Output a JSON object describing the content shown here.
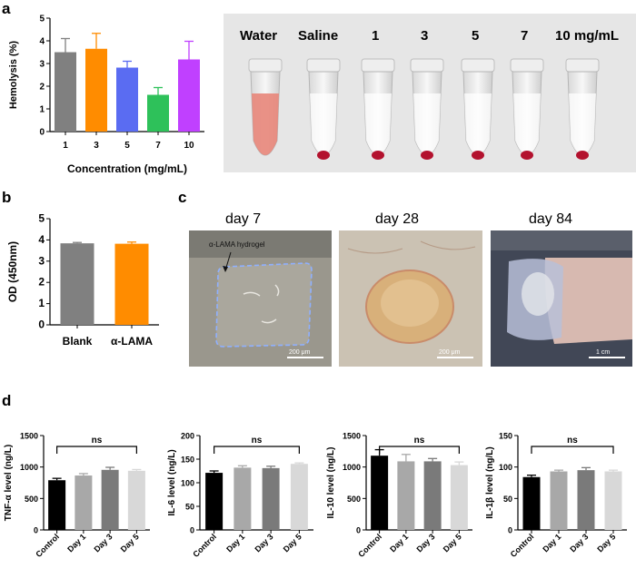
{
  "panel_labels": {
    "a": "a",
    "b": "b",
    "c": "c",
    "d": "d"
  },
  "tube_photo": {
    "labels": [
      "Water",
      "Saline",
      "1",
      "3",
      "5",
      "7",
      "10 mg/mL"
    ]
  },
  "implant_photos": {
    "day_labels": [
      "day 7",
      "day 28",
      "day 84"
    ],
    "hydrogel_annotation": "α-LAMA hydrogel",
    "scale_labels": [
      "200 μm",
      "200 μm",
      "1 cm"
    ]
  },
  "chart_data": [
    {
      "id": "hemolysis",
      "type": "bar",
      "categories": [
        "1",
        "3",
        "5",
        "7",
        "10"
      ],
      "values": [
        3.5,
        3.65,
        2.82,
        1.62,
        3.18
      ],
      "errors": [
        0.6,
        0.68,
        0.28,
        0.32,
        0.8
      ],
      "colors": [
        "#808080",
        "#ff8c00",
        "#5a6cf2",
        "#2ec15a",
        "#c040ff"
      ],
      "xlabel": "Concentration (mg/mL)",
      "ylabel": "Hemolysis (%)",
      "ylim": [
        0,
        5
      ],
      "yticks": [
        0,
        1,
        2,
        3,
        4,
        5
      ]
    },
    {
      "id": "od",
      "type": "bar",
      "categories": [
        "Blank",
        "α-LAMA"
      ],
      "values": [
        3.84,
        3.82
      ],
      "errors": [
        0.04,
        0.08
      ],
      "colors": [
        "#808080",
        "#ff8c00"
      ],
      "xlabel": "",
      "ylabel": "OD (450nm)",
      "ylim": [
        0,
        5
      ],
      "yticks": [
        0,
        1,
        2,
        3,
        4,
        5
      ]
    },
    {
      "id": "tnf",
      "type": "bar",
      "categories": [
        "Control",
        "Day 1",
        "Day 3",
        "Day 5"
      ],
      "values": [
        790,
        865,
        955,
        940
      ],
      "errors": [
        30,
        30,
        40,
        20
      ],
      "colors": [
        "#000000",
        "#a8a8a8",
        "#7a7a7a",
        "#d8d8d8"
      ],
      "ylabel": "TNF-α level (ng/L)",
      "ylim": [
        0,
        1500
      ],
      "yticks": [
        0,
        500,
        1000,
        1500
      ],
      "annotation": "ns"
    },
    {
      "id": "il6",
      "type": "bar",
      "categories": [
        "Control",
        "Day 1",
        "Day 3",
        "Day 5"
      ],
      "values": [
        121,
        132,
        131,
        140
      ],
      "errors": [
        4,
        4,
        4,
        2
      ],
      "colors": [
        "#000000",
        "#a8a8a8",
        "#7a7a7a",
        "#d8d8d8"
      ],
      "ylabel": "IL-6 level (ng/L)",
      "ylim": [
        0,
        200
      ],
      "yticks": [
        0,
        50,
        100,
        150,
        200
      ],
      "annotation": "ns"
    },
    {
      "id": "il10",
      "type": "bar",
      "categories": [
        "Control",
        "Day 1",
        "Day 3",
        "Day 5"
      ],
      "values": [
        1180,
        1090,
        1090,
        1030
      ],
      "errors": [
        95,
        110,
        45,
        50
      ],
      "colors": [
        "#000000",
        "#a8a8a8",
        "#7a7a7a",
        "#d8d8d8"
      ],
      "ylabel": "IL-10 level (ng/L)",
      "ylim": [
        0,
        1500
      ],
      "yticks": [
        0,
        500,
        1000,
        1500
      ],
      "annotation": "ns"
    },
    {
      "id": "il1b",
      "type": "bar",
      "categories": [
        "Control",
        "Day 1",
        "Day 3",
        "Day 5"
      ],
      "values": [
        84,
        93,
        95,
        93
      ],
      "errors": [
        3,
        2,
        4,
        2
      ],
      "colors": [
        "#000000",
        "#a8a8a8",
        "#7a7a7a",
        "#d8d8d8"
      ],
      "ylabel": "IL-1β level (ng/L)",
      "ylim": [
        0,
        150
      ],
      "yticks": [
        0,
        50,
        100,
        150
      ],
      "annotation": "ns"
    }
  ]
}
